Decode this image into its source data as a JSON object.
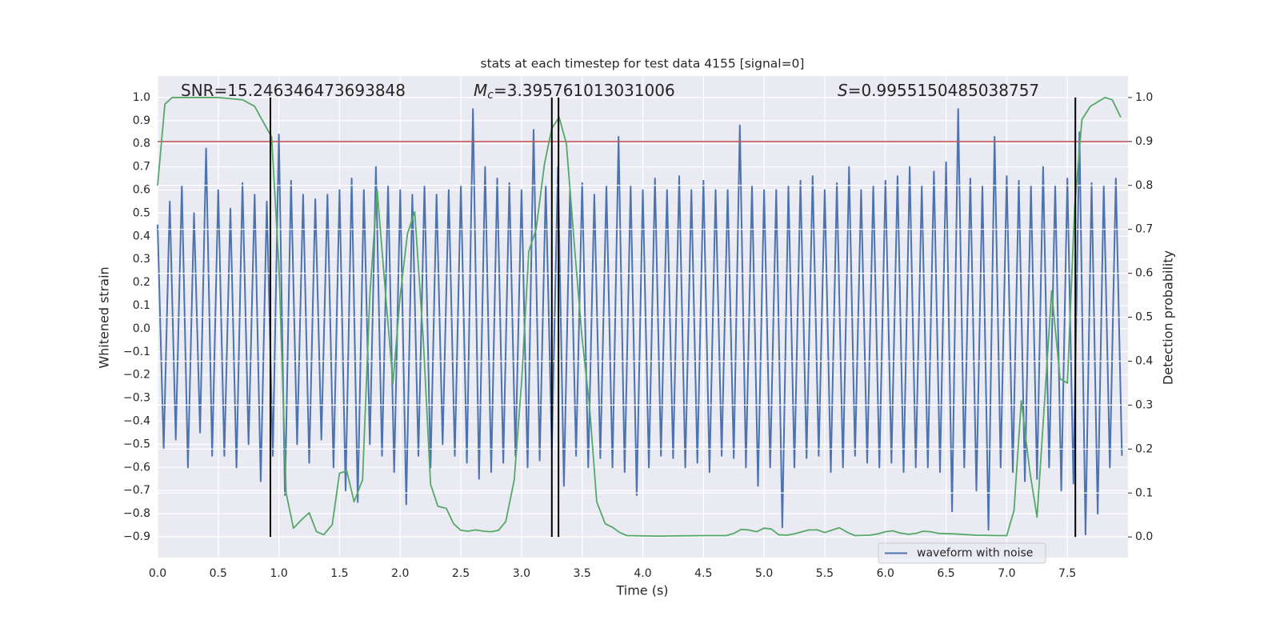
{
  "chart_data": {
    "type": "line",
    "title": "stats at each timestep for test data 4155 [signal=0]",
    "xlabel": "Time (s)",
    "ylabel": "Whitened strain",
    "y2label": "Detection probability",
    "grid": true,
    "legend": "lower right",
    "xlim": [
      0,
      8.0
    ],
    "xticks": [
      {
        "value": 0,
        "label": "0.0"
      },
      0.5,
      {
        "value": 1,
        "label": "1.0"
      },
      1.5,
      {
        "value": 2,
        "label": "2.0"
      },
      2.5,
      {
        "value": 3,
        "label": "3.0"
      },
      3.5,
      {
        "value": 4,
        "label": "4.0"
      },
      4.5,
      {
        "value": 5,
        "label": "5.0"
      },
      5.5,
      {
        "value": 6,
        "label": "6.0"
      },
      6.5,
      {
        "value": 7,
        "label": "7.0"
      },
      7.5
    ],
    "ylim": [
      -0.99,
      1.093
    ],
    "yticks": [
      {
        "value": -0.9,
        "label": "−0.9"
      },
      {
        "value": -0.8,
        "label": "−0.8"
      },
      {
        "value": -0.7,
        "label": "−0.7"
      },
      {
        "value": -0.6,
        "label": "−0.6"
      },
      {
        "value": -0.5,
        "label": "−0.5"
      },
      {
        "value": -0.4,
        "label": "−0.4"
      },
      {
        "value": -0.3,
        "label": "−0.3"
      },
      {
        "value": -0.2,
        "label": "−0.2"
      },
      {
        "value": -0.1,
        "label": "−0.1"
      },
      {
        "value": 0,
        "label": "0.0"
      },
      0.1,
      0.2,
      0.3,
      0.4,
      0.5,
      0.6,
      0.7,
      0.8,
      0.9,
      {
        "value": 1,
        "label": "1.0"
      }
    ],
    "y2lim": [
      -0.047,
      1.049
    ],
    "y2ticks": [
      {
        "value": 0,
        "label": "0.0"
      },
      0.1,
      0.2,
      0.3,
      0.4,
      0.5,
      0.6,
      0.7,
      0.8,
      0.9,
      {
        "value": 1,
        "label": "1.0"
      }
    ],
    "x": [
      0,
      0.05,
      0.1,
      0.15,
      0.2,
      0.25,
      0.3,
      0.35,
      0.4,
      0.45,
      0.5,
      0.55,
      0.6,
      0.65,
      0.7,
      0.75,
      0.8,
      0.85,
      0.9,
      0.95,
      1,
      1.05,
      1.1,
      1.15,
      1.2,
      1.25,
      1.3,
      1.35,
      1.4,
      1.45,
      1.5,
      1.55,
      1.6,
      1.65,
      1.7,
      1.75,
      1.8,
      1.85,
      1.9,
      1.95,
      2,
      2.05,
      2.1,
      2.15,
      2.2,
      2.25,
      2.3,
      2.35,
      2.4,
      2.45,
      2.5,
      2.55,
      2.6,
      2.65,
      2.7,
      2.75,
      2.8,
      2.85,
      2.9,
      2.95,
      3,
      3.05,
      3.1,
      3.15,
      3.2,
      3.25,
      3.3,
      3.35,
      3.4,
      3.45,
      3.5,
      3.55,
      3.6,
      3.65,
      3.7,
      3.75,
      3.8,
      3.85,
      3.9,
      3.95,
      4,
      4.05,
      4.1,
      4.15,
      4.2,
      4.25,
      4.3,
      4.35,
      4.4,
      4.45,
      4.5,
      4.55,
      4.6,
      4.65,
      4.7,
      4.75,
      4.8,
      4.85,
      4.9,
      4.95,
      5,
      5.05,
      5.1,
      5.15,
      5.2,
      5.25,
      5.3,
      5.35,
      5.4,
      5.45,
      5.5,
      5.55,
      5.6,
      5.65,
      5.7,
      5.75,
      5.8,
      5.85,
      5.9,
      5.95,
      6,
      6.05,
      6.1,
      6.15,
      6.2,
      6.25,
      6.3,
      6.35,
      6.4,
      6.45,
      6.5,
      6.55,
      6.6,
      6.65,
      6.7,
      6.75,
      6.8,
      6.85,
      6.9,
      6.95,
      7,
      7.05,
      7.1,
      7.15,
      7.2,
      7.25,
      7.3,
      7.35,
      7.4,
      7.45,
      7.5,
      7.55,
      7.6,
      7.65,
      7.7,
      7.75,
      7.8,
      7.85,
      7.9,
      7.95
    ],
    "series": [
      {
        "name": "waveform with noise",
        "color": "#4c72b0",
        "values": [
          0.45,
          -0.52,
          0.55,
          -0.48,
          0.62,
          -0.6,
          0.5,
          -0.45,
          0.78,
          -0.55,
          0.6,
          -0.55,
          0.52,
          -0.6,
          0.63,
          -0.5,
          0.58,
          -0.66,
          0.55,
          -0.55,
          0.84,
          -0.72,
          0.64,
          -0.5,
          0.58,
          -0.58,
          0.56,
          -0.48,
          0.58,
          -0.6,
          0.6,
          -0.7,
          0.65,
          -0.75,
          0.6,
          -0.5,
          0.7,
          -0.55,
          0.62,
          -0.62,
          0.6,
          -0.76,
          0.58,
          -0.55,
          0.62,
          -0.6,
          0.58,
          -0.5,
          0.6,
          -0.55,
          0.62,
          -0.58,
          0.95,
          -0.65,
          0.7,
          -0.62,
          0.65,
          -0.58,
          0.63,
          -0.55,
          0.6,
          -0.6,
          0.86,
          -0.57,
          0.62,
          -0.52,
          0.7,
          -0.68,
          0.6,
          -0.55,
          0.63,
          -0.6,
          0.58,
          -0.56,
          0.62,
          -0.6,
          0.83,
          -0.62,
          0.62,
          -0.72,
          0.6,
          -0.6,
          0.65,
          -0.55,
          0.6,
          -0.56,
          0.66,
          -0.6,
          0.6,
          -0.58,
          0.64,
          -0.62,
          0.6,
          -0.55,
          0.6,
          -0.56,
          0.88,
          -0.6,
          0.62,
          -0.68,
          0.6,
          -0.6,
          0.6,
          -0.86,
          0.62,
          -0.6,
          0.64,
          -0.56,
          0.66,
          -0.55,
          0.6,
          -0.62,
          0.63,
          -0.6,
          0.7,
          -0.55,
          0.6,
          -0.58,
          0.62,
          -0.6,
          0.64,
          -0.58,
          0.66,
          -0.62,
          0.7,
          -0.6,
          0.62,
          -0.6,
          0.68,
          -0.62,
          0.72,
          -0.79,
          0.95,
          -0.6,
          0.65,
          -0.7,
          0.62,
          -0.87,
          0.83,
          -0.6,
          0.66,
          -0.62,
          0.64,
          -0.66,
          0.62,
          -0.65,
          0.7,
          -0.6,
          0.62,
          -0.7,
          0.65,
          -0.67,
          0.85,
          -0.89,
          0.63,
          -0.8,
          0.62,
          -0.6,
          0.65,
          -0.55
        ]
      },
      {
        "color": "#55a868",
        "axis": "y2",
        "x": [
          0,
          0.06,
          0.12,
          0.5,
          0.7,
          0.8,
          0.88,
          0.94,
          1.0,
          1.06,
          1.12,
          1.19,
          1.25,
          1.31,
          1.37,
          1.44,
          1.5,
          1.56,
          1.62,
          1.69,
          1.75,
          1.81,
          1.88,
          1.94,
          2.0,
          2.06,
          2.12,
          2.19,
          2.25,
          2.31,
          2.38,
          2.44,
          2.5,
          2.56,
          2.62,
          2.69,
          2.75,
          2.81,
          2.87,
          2.94,
          3.0,
          3.06,
          3.12,
          3.19,
          3.25,
          3.31,
          3.37,
          3.44,
          3.5,
          3.56,
          3.62,
          3.69,
          3.75,
          3.81,
          3.87,
          4.12,
          4.5,
          4.69,
          4.75,
          4.81,
          4.87,
          4.94,
          5.0,
          5.06,
          5.12,
          5.19,
          5.25,
          5.37,
          5.44,
          5.5,
          5.62,
          5.69,
          5.75,
          5.87,
          5.94,
          6.0,
          6.06,
          6.12,
          6.19,
          6.25,
          6.31,
          6.37,
          6.44,
          6.56,
          6.75,
          6.94,
          7.0,
          7.06,
          7.12,
          7.19,
          7.25,
          7.31,
          7.37,
          7.44,
          7.5,
          7.56,
          7.62,
          7.69,
          7.75,
          7.81,
          7.87,
          7.94
        ],
        "values": [
          0.8,
          0.985,
          1.0,
          1.0,
          0.995,
          0.98,
          0.94,
          0.91,
          0.62,
          0.1,
          0.02,
          0.04,
          0.055,
          0.012,
          0.005,
          0.028,
          0.145,
          0.15,
          0.08,
          0.13,
          0.55,
          0.79,
          0.55,
          0.35,
          0.55,
          0.69,
          0.74,
          0.45,
          0.12,
          0.07,
          0.065,
          0.03,
          0.015,
          0.013,
          0.016,
          0.013,
          0.012,
          0.015,
          0.035,
          0.13,
          0.35,
          0.65,
          0.7,
          0.85,
          0.93,
          0.955,
          0.895,
          0.65,
          0.45,
          0.3,
          0.08,
          0.03,
          0.022,
          0.01,
          0.003,
          0.002,
          0.003,
          0.003,
          0.008,
          0.017,
          0.016,
          0.012,
          0.02,
          0.018,
          0.005,
          0.004,
          0.007,
          0.016,
          0.016,
          0.01,
          0.021,
          0.01,
          0.003,
          0.004,
          0.007,
          0.012,
          0.014,
          0.009,
          0.006,
          0.008,
          0.013,
          0.012,
          0.008,
          0.007,
          0.004,
          0.003,
          0.003,
          0.06,
          0.31,
          0.15,
          0.045,
          0.3,
          0.56,
          0.36,
          0.35,
          0.75,
          0.95,
          0.98,
          0.99,
          1.0,
          0.995,
          0.955
        ]
      }
    ],
    "hlines": [
      {
        "value": 0.9,
        "axis": "y2",
        "color": "#c44e52"
      }
    ],
    "vlines": {
      "x": [
        0.93,
        3.25,
        3.305,
        7.566
      ],
      "axis": "y2",
      "span": [
        0,
        1
      ],
      "color": "#000000"
    },
    "annotations": [
      {
        "text": "SNR=15.246346473693848"
      },
      {
        "symbol": "M",
        "subscript": "c",
        "text": "=3.395761013031006"
      },
      {
        "symbol": "S",
        "text": "=0.9955150485038757"
      }
    ]
  }
}
